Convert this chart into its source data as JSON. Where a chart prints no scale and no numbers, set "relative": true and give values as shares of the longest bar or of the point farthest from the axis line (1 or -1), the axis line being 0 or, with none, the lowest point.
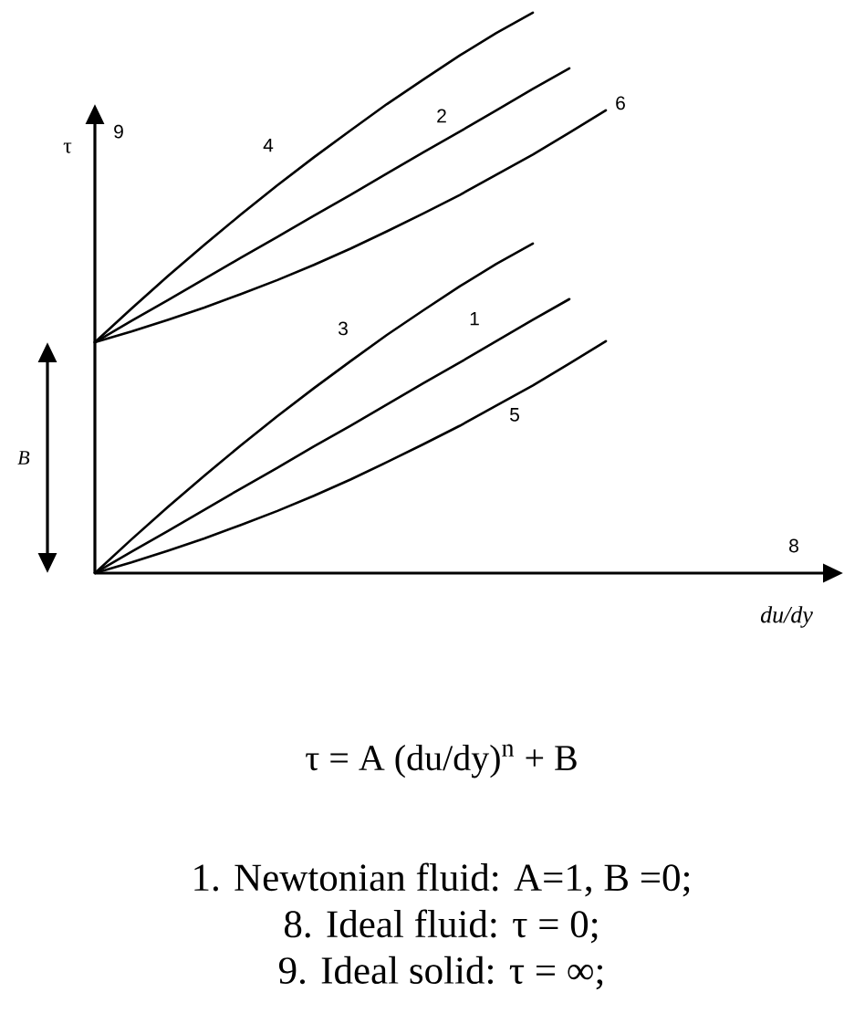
{
  "chart_data": {
    "type": "line",
    "relative": true,
    "xlabel": "du/dy",
    "ylabel": "τ",
    "categories": [
      null,
      null,
      null,
      null,
      null,
      null,
      null,
      null,
      null,
      null,
      null,
      null,
      null,
      null,
      null,
      null,
      null,
      null,
      null,
      null,
      null
    ],
    "series": [
      {
        "name": "1",
        "color": "#000000",
        "values": [
          0,
          0.038,
          0.075,
          0.113,
          0.151,
          0.188,
          0.226,
          0.263,
          0.301,
          0.339,
          0.376,
          0.414,
          0.452,
          0.489,
          null,
          null,
          null,
          null,
          null,
          null,
          null
        ]
      },
      {
        "name": "2",
        "color": "#000000",
        "values": [
          0.412,
          0.45,
          0.487,
          0.525,
          0.563,
          0.6,
          0.638,
          0.675,
          0.713,
          0.751,
          0.788,
          0.826,
          0.864,
          0.901,
          null,
          null,
          null,
          null,
          null,
          null,
          null
        ]
      },
      {
        "name": "3",
        "color": "#000000",
        "values": [
          0,
          0.06,
          0.118,
          0.174,
          0.228,
          0.28,
          0.33,
          0.378,
          0.425,
          0.469,
          0.512,
          0.552,
          0.588,
          null,
          null,
          null,
          null,
          null,
          null,
          null,
          null
        ]
      },
      {
        "name": "4",
        "color": "#000000",
        "values": [
          0.412,
          0.472,
          0.53,
          0.586,
          0.64,
          0.692,
          0.742,
          0.79,
          0.837,
          0.881,
          0.924,
          0.964,
          1.0,
          null,
          null,
          null,
          null,
          null,
          null,
          null,
          null
        ]
      },
      {
        "name": "5",
        "color": "#000000",
        "values": [
          0,
          0.019,
          0.04,
          0.062,
          0.086,
          0.111,
          0.138,
          0.167,
          0.198,
          0.23,
          0.263,
          0.299,
          0.335,
          0.374,
          0.414,
          null,
          null,
          null,
          null,
          null,
          null
        ]
      },
      {
        "name": "6",
        "color": "#000000",
        "values": [
          0.412,
          0.431,
          0.452,
          0.474,
          0.498,
          0.523,
          0.55,
          0.579,
          0.61,
          0.642,
          0.675,
          0.711,
          0.747,
          0.786,
          0.826,
          null,
          null,
          null,
          null,
          null,
          null
        ]
      }
    ],
    "annotations": [
      "8",
      "9",
      "B",
      "τ = A (du/dy)$^{n}$ + B",
      "1. Newtonian fluid: A=1, B =0;",
      "8. Ideal fluid: τ = 0;",
      "9. Ideal solid: τ = ∞;"
    ]
  }
}
